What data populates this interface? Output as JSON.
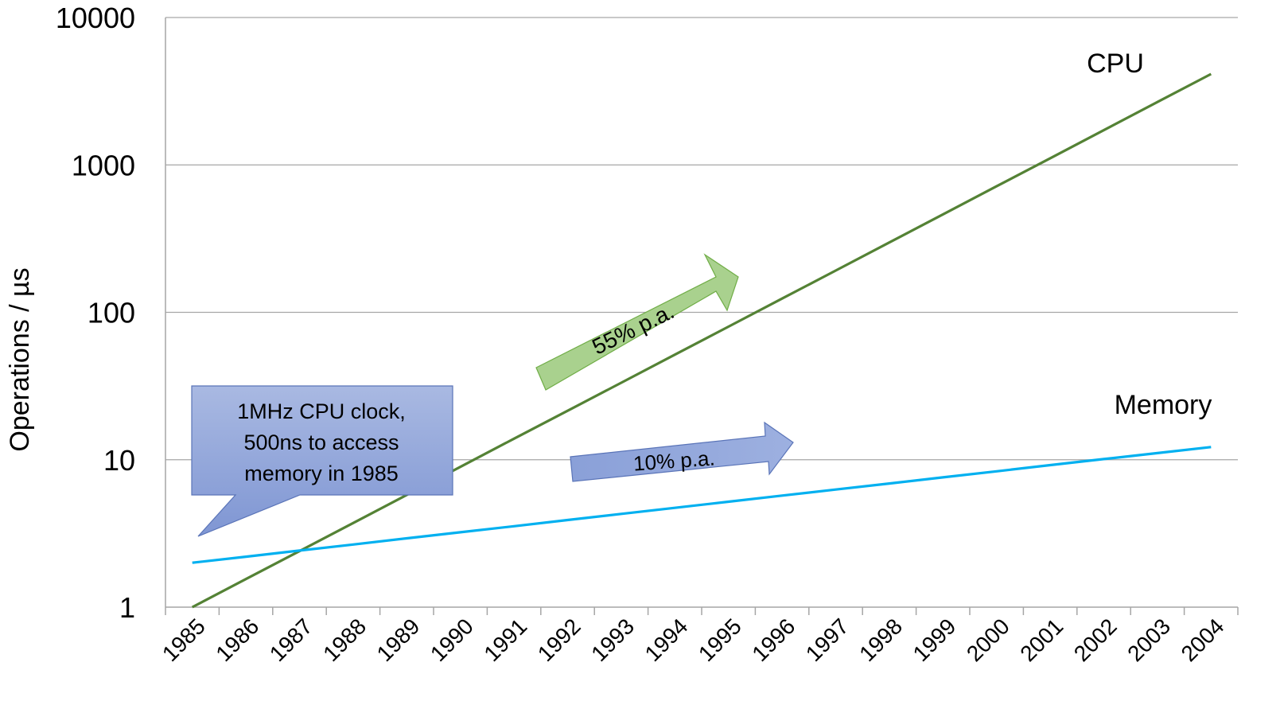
{
  "chart_data": {
    "type": "line",
    "scale": "log",
    "ylabel": "Operations  / µs",
    "y_ticks": [
      "1",
      "10",
      "100",
      "1000",
      "10000"
    ],
    "ylim": [
      1,
      10000
    ],
    "categories": [
      "1985",
      "1986",
      "1987",
      "1988",
      "1989",
      "1990",
      "1991",
      "1992",
      "1993",
      "1994",
      "1995",
      "1996",
      "1997",
      "1998",
      "1999",
      "2000",
      "2001",
      "2002",
      "2003",
      "2004"
    ],
    "grid": true,
    "series": [
      {
        "name": "CPU",
        "color": "#548235",
        "values": [
          1,
          1.55,
          2.4,
          3.72,
          5.77,
          8.95,
          13.9,
          21.5,
          33.3,
          51.6,
          80,
          124,
          192,
          298,
          462,
          716,
          1110,
          1720,
          2670,
          4140
        ]
      },
      {
        "name": "Memory",
        "color": "#00b0f0",
        "values": [
          2,
          2.2,
          2.42,
          2.66,
          2.93,
          3.22,
          3.54,
          3.9,
          4.29,
          4.72,
          5.19,
          5.71,
          6.28,
          6.9,
          7.59,
          8.35,
          9.19,
          10.1,
          11.1,
          12.2
        ]
      }
    ],
    "annotations": {
      "cpu_growth": "55% p.a.",
      "memory_growth": "10% p.a.",
      "callout_lines": [
        "1MHz CPU clock,",
        "500ns to access",
        "memory in 1985"
      ]
    }
  }
}
